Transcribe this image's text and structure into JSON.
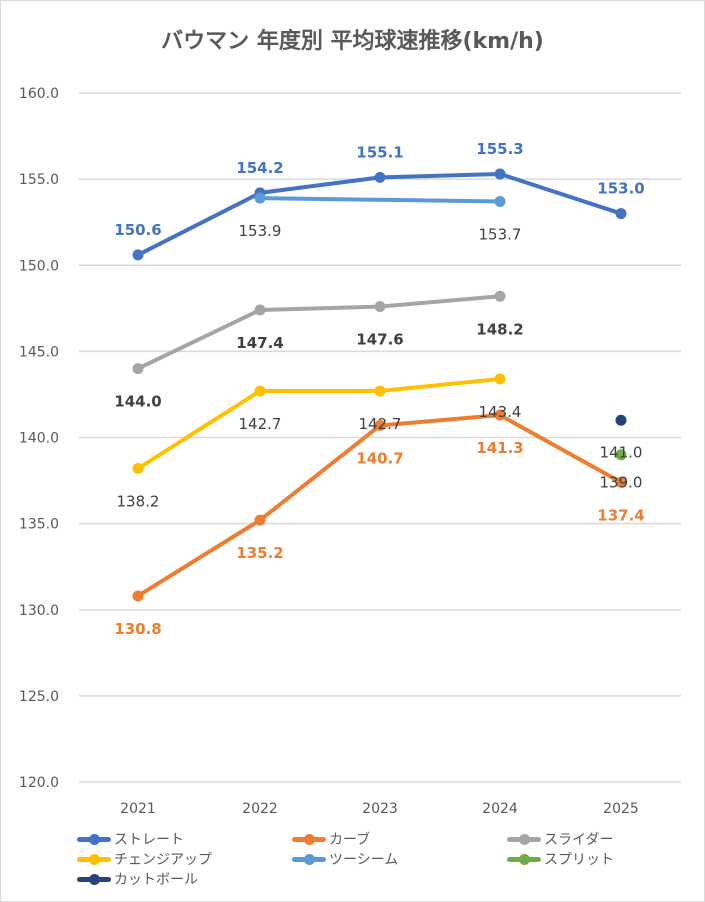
{
  "chart_data": {
    "type": "line",
    "title": "バウマン 年度別 平均球速推移(km/h)",
    "categories": [
      "2021",
      "2022",
      "2023",
      "2024",
      "2025"
    ],
    "ylim": [
      120,
      160
    ],
    "yticks": [
      "120.0",
      "125.0",
      "130.0",
      "135.0",
      "140.0",
      "145.0",
      "150.0",
      "155.0",
      "160.0"
    ],
    "grid": true,
    "legend_position": "bottom",
    "series": [
      {
        "name": "ストレート",
        "color": "#4472C4",
        "values": [
          150.6,
          154.2,
          155.1,
          155.3,
          153.0
        ],
        "labels": [
          "150.6",
          "154.2",
          "155.1",
          "155.3",
          "153.0"
        ]
      },
      {
        "name": "カーブ",
        "color": "#ED7D31",
        "values": [
          130.8,
          135.2,
          140.7,
          141.3,
          137.4
        ],
        "labels": [
          "130.8",
          "135.2",
          "140.7",
          "141.3",
          "137.4"
        ]
      },
      {
        "name": "スライダー",
        "color": "#A5A5A5",
        "values": [
          144.0,
          147.4,
          147.6,
          148.2,
          null
        ],
        "labels": [
          "144.0",
          "147.4",
          "147.6",
          "148.2",
          ""
        ]
      },
      {
        "name": "チェンジアップ",
        "color": "#FFC000",
        "values": [
          138.2,
          142.7,
          142.7,
          143.4,
          null
        ],
        "labels": [
          "138.2",
          "142.7",
          "142.7",
          "143.4",
          ""
        ]
      },
      {
        "name": "ツーシーム",
        "color": "#5B9BD5",
        "values": [
          null,
          153.9,
          null,
          153.7,
          null
        ],
        "labels": [
          "",
          "153.9",
          "",
          "153.7",
          ""
        ]
      },
      {
        "name": "スプリット",
        "color": "#70AD47",
        "values": [
          null,
          null,
          null,
          null,
          139.0
        ],
        "labels": [
          "",
          "",
          "",
          "",
          "139.0"
        ]
      },
      {
        "name": "カットボール",
        "color": "#264478",
        "values": [
          null,
          null,
          null,
          null,
          141.0
        ],
        "labels": [
          "",
          "",
          "",
          "",
          "141.0"
        ]
      }
    ]
  }
}
